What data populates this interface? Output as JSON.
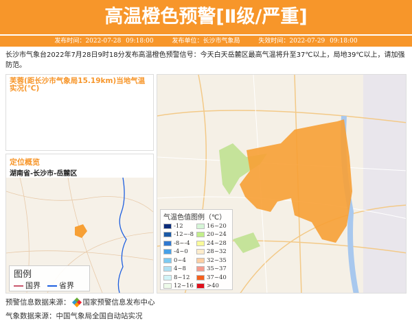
{
  "header": {
    "title": "高温橙色预警[Ⅱ级/严重]"
  },
  "meta": {
    "issue_time": "发布时间：2022-07-28 09:18:00",
    "issuer": "发布单位：长沙市气象局",
    "expire_time": "失效时间：2022-07-29 09:18:00"
  },
  "description": "长沙市气象台2022年7月28日9时18分发布高温橙色预警信号：今天白天岳麓区最高气温将升至37℃以上，局地39℃以上，请加强防范。",
  "station_panel": {
    "title": "芙蓉(距长沙市气象局15.19km)当地气温实况(℃)"
  },
  "location_panel": {
    "title": "定位概览",
    "location": "湖南省-长沙市-岳麓区",
    "legend": {
      "title": "图例",
      "items": [
        {
          "label": "国界",
          "color": "#c9556b"
        },
        {
          "label": "省界",
          "color": "#1c5ee0"
        }
      ]
    }
  },
  "map_legend": {
    "title": "气温色值图例（℃）",
    "items": [
      {
        "label": "-12",
        "color": "#0b2c7a"
      },
      {
        "label": "16~20",
        "color": "#d6f5d6"
      },
      {
        "label": "-12~-8",
        "color": "#1b5aa6"
      },
      {
        "label": "20~24",
        "color": "#c2ee8a"
      },
      {
        "label": "-8~-4",
        "color": "#2f78d0"
      },
      {
        "label": "24~28",
        "color": "#fafa9a"
      },
      {
        "label": "-4~0",
        "color": "#46a0e8"
      },
      {
        "label": "28~32",
        "color": "#fdeccb"
      },
      {
        "label": "0~4",
        "color": "#7dcaf2"
      },
      {
        "label": "32~35",
        "color": "#fdcfa3"
      },
      {
        "label": "4~8",
        "color": "#aee0f3"
      },
      {
        "label": "35~37",
        "color": "#f59a8c"
      },
      {
        "label": "8~12",
        "color": "#d2f4f8"
      },
      {
        "label": "37~40",
        "color": "#f5601c"
      },
      {
        "label": "12~16",
        "color": "#eefbea"
      },
      {
        "label": ">40",
        "color": "#e0101c"
      }
    ]
  },
  "footer": {
    "warning_source": "预警信息数据来源：",
    "warning_source_org": "国家预警信息发布中心",
    "weather_source": "气象数据来源：中国气象局全国自动站实况"
  },
  "colors": {
    "accent": "#f7962a",
    "warning_area": "#f7a035"
  }
}
